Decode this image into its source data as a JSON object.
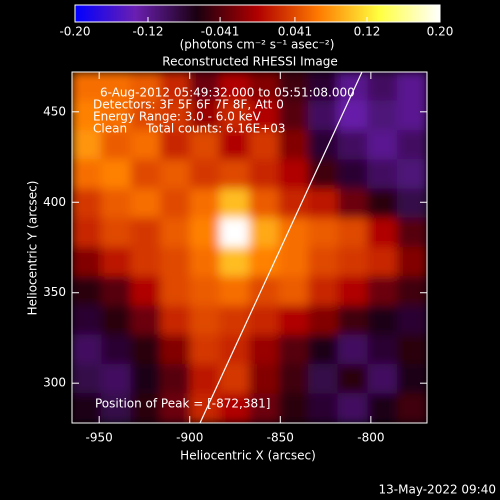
{
  "chart_data": {
    "type": "heatmap",
    "title": "Reconstructed RHESSI Image",
    "x_label": "Heliocentric X (arcsec)",
    "y_label": "Heliocentric Y (arcsec)",
    "colorbar_label": "(photons cm⁻² s⁻¹ asec⁻²)",
    "annotations": [
      "6-Aug-2012 05:49:32.000 to 05:51:08.000",
      "Detectors: 3F 5F 6F 7F 8F, Att 0",
      "Energy Range: 3.0 - 6.0 keV",
      "Clean     Total counts: 6.16E+03"
    ],
    "peak_label": "Position of Peak = [-872,381]",
    "footer": "13-May-2022 09:40",
    "xlim": [
      -965,
      -769
    ],
    "ylim": [
      278,
      472
    ],
    "xticks": [
      -950,
      -900,
      -850,
      -800
    ],
    "yticks": [
      300,
      350,
      400,
      450
    ],
    "zlim": [
      -0.2,
      0.2
    ],
    "zticks": [
      {
        "value": -0.2,
        "label": "-0.20"
      },
      -0.12,
      -0.041,
      0.041,
      0.12,
      {
        "value": 0.2,
        "label": "0.20"
      }
    ],
    "colormap": [
      "#0000ff",
      "#6a1fb0",
      "#1a0010",
      "#b00000",
      "#ff7a00",
      "#ffff40",
      "#ffffff"
    ],
    "z": [
      [
        0.06,
        0.06,
        0.05,
        0.02,
        -0.03,
        0.0,
        -0.02,
        -0.05,
        -0.08,
        -0.12,
        -0.1,
        -0.12
      ],
      [
        0.07,
        0.06,
        0.04,
        0.03,
        -0.01,
        0.02,
        0.0,
        -0.04,
        -0.1,
        -0.13,
        -0.11,
        -0.12
      ],
      [
        0.08,
        0.05,
        0.06,
        0.02,
        0.04,
        0.0,
        0.03,
        -0.02,
        -0.08,
        -0.1,
        -0.12,
        -0.1
      ],
      [
        0.06,
        0.07,
        0.04,
        0.05,
        0.03,
        0.04,
        0.02,
        0.0,
        -0.05,
        -0.08,
        -0.1,
        -0.11
      ],
      [
        0.03,
        0.05,
        0.06,
        0.04,
        0.06,
        0.1,
        0.05,
        0.02,
        0.01,
        -0.03,
        -0.06,
        -0.09
      ],
      [
        0.02,
        0.04,
        0.03,
        0.05,
        0.07,
        0.2,
        0.09,
        0.06,
        0.05,
        0.04,
        0.0,
        -0.04
      ],
      [
        -0.02,
        0.01,
        0.03,
        0.04,
        0.06,
        0.1,
        0.07,
        0.06,
        0.04,
        0.03,
        0.02,
        -0.02
      ],
      [
        -0.06,
        -0.04,
        0.0,
        0.04,
        0.05,
        0.06,
        0.04,
        0.05,
        0.02,
        0.0,
        -0.03,
        -0.05
      ],
      [
        -0.08,
        -0.06,
        -0.03,
        0.02,
        0.04,
        0.03,
        0.02,
        0.0,
        -0.02,
        -0.05,
        -0.07,
        -0.08
      ],
      [
        -0.1,
        -0.08,
        -0.06,
        -0.02,
        0.03,
        0.02,
        -0.01,
        -0.04,
        -0.07,
        -0.1,
        -0.08,
        -0.06
      ],
      [
        -0.09,
        -0.1,
        -0.07,
        -0.04,
        0.01,
        0.03,
        -0.02,
        -0.05,
        -0.09,
        -0.06,
        -0.1,
        -0.07
      ],
      [
        -0.07,
        -0.09,
        -0.06,
        -0.03,
        0.02,
        0.0,
        -0.03,
        -0.06,
        -0.08,
        -0.1,
        -0.07,
        -0.05
      ]
    ]
  }
}
